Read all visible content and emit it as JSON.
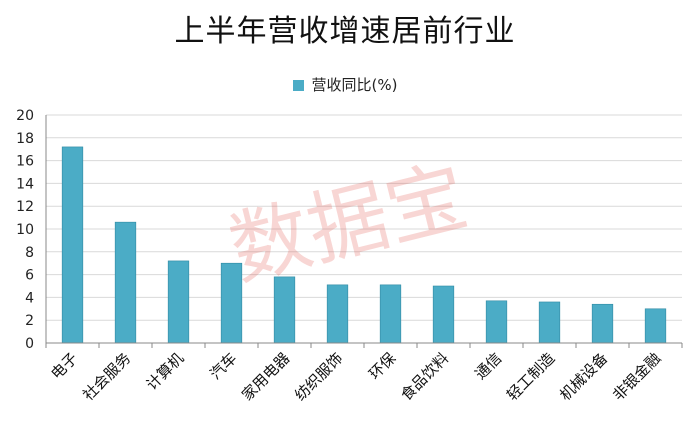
{
  "chart_data": {
    "type": "bar",
    "title": "上半年营收增速居前行业",
    "categories": [
      "电子",
      "社会服务",
      "计算机",
      "汽车",
      "家用电器",
      "纺织服饰",
      "环保",
      "食品饮料",
      "通信",
      "轻工制造",
      "机械设备",
      "非银金融"
    ],
    "series": [
      {
        "name": "营收同比(%)",
        "values": [
          17.2,
          10.6,
          7.2,
          7.0,
          5.8,
          5.1,
          5.1,
          5.0,
          3.7,
          3.6,
          3.4,
          3.0
        ]
      }
    ],
    "ylim": [
      0,
      20
    ],
    "yticks": [
      0,
      2,
      4,
      6,
      8,
      10,
      12,
      14,
      16,
      18,
      20
    ],
    "grid": true,
    "legend": "top",
    "colors": {
      "bar": "#4bacc6",
      "bar_edge": "#2f8aa3",
      "grid": "#d9d9d9",
      "axis": "#888888"
    }
  },
  "watermark": "数据宝"
}
